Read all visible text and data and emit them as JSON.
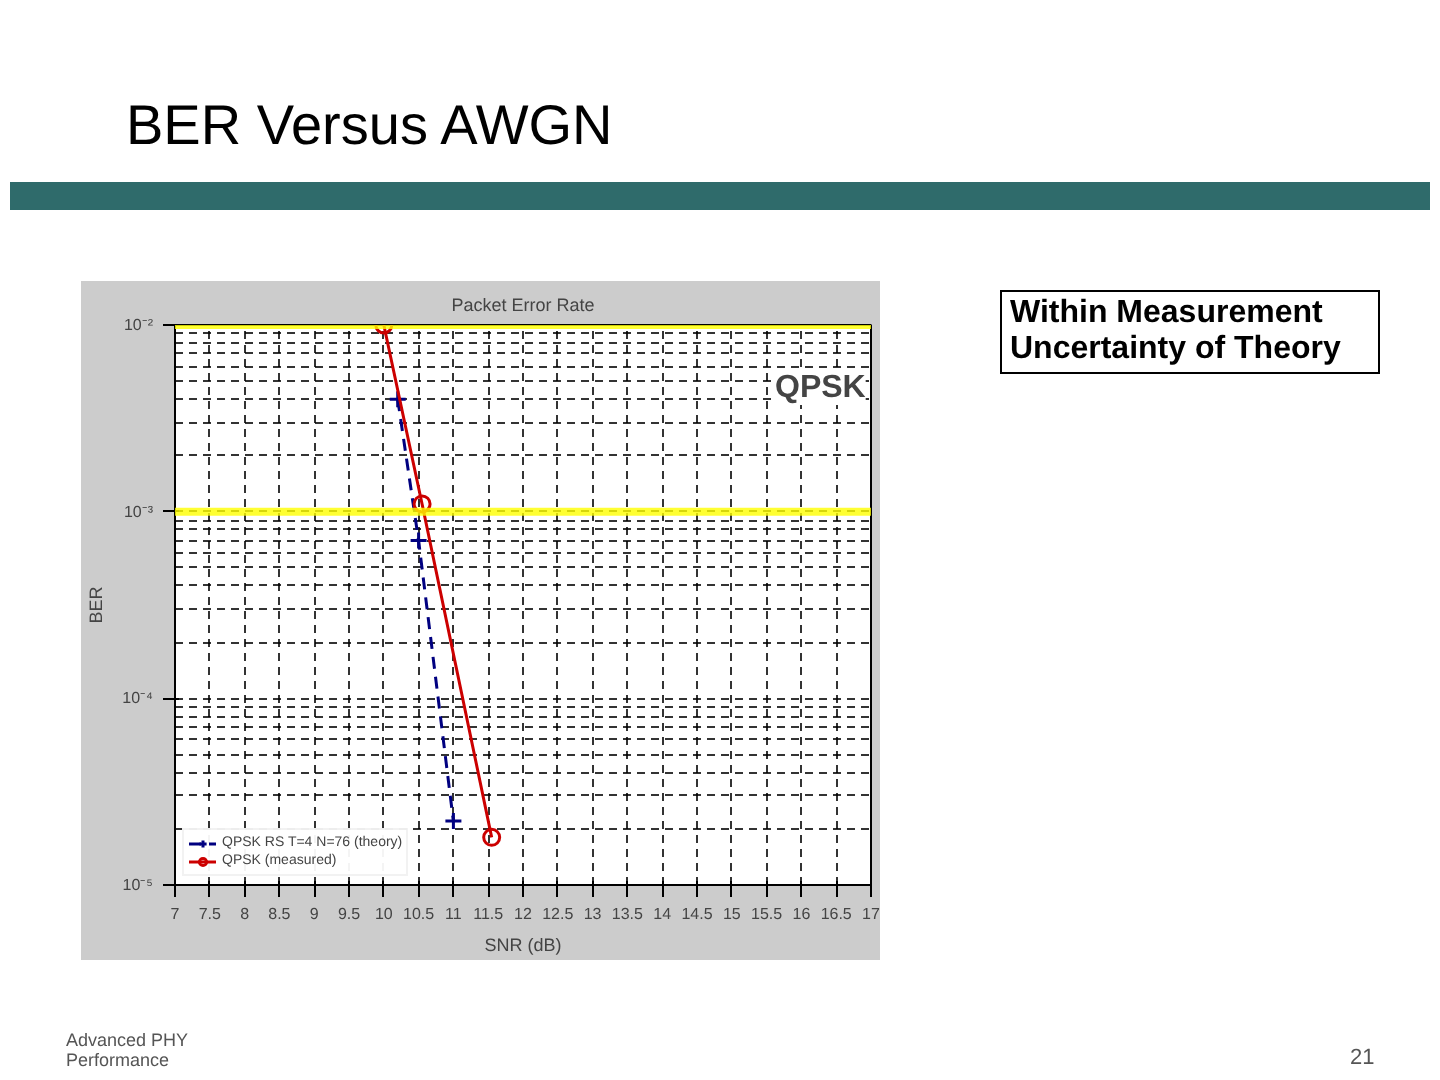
{
  "chart_data": {
    "type": "line",
    "title": "Packet Error Rate",
    "subtitle": "BER Versus AWGN",
    "xlabel": "SNR (dB)",
    "ylabel": "BER",
    "log": "y",
    "xlim": [
      7,
      17
    ],
    "ylim": [
      1e-05,
      0.01
    ],
    "xticks": [
      7,
      7.5,
      8,
      8.5,
      9,
      9.5,
      10,
      10.5,
      11,
      11.5,
      12,
      12.5,
      13,
      13.5,
      14,
      14.5,
      15,
      15.5,
      16,
      16.5,
      17
    ],
    "yticks": [
      {
        "value": 1e-05,
        "label": "10⁻⁵"
      },
      {
        "value": 0.0001,
        "label": "10⁻⁴"
      },
      {
        "value": 0.001,
        "label": "10⁻³"
      },
      {
        "value": 0.01,
        "label": "10⁻²"
      }
    ],
    "grid": true,
    "legend": "bottom left",
    "series": [
      {
        "name": "QPSK RS T=4 N=76 (theory)",
        "color": "#000080",
        "marker": "cross",
        "line_style": "dashed",
        "x": [
          10.2,
          10.5,
          11.0
        ],
        "values": [
          0.004,
          0.0007,
          2.2e-05
        ]
      },
      {
        "name": "QPSK (measured)",
        "color": "#cc0000",
        "marker": "circle",
        "line_style": "solid",
        "x": [
          10.0,
          10.55,
          11.55
        ],
        "values": [
          0.01,
          0.0011,
          1.8e-05
        ]
      }
    ],
    "ref_lines": [
      {
        "axis": "y",
        "value": 0.01,
        "color": "#ffff00"
      },
      {
        "axis": "y",
        "value": 0.001,
        "color": "#ffff00"
      }
    ],
    "annotations": [
      "QPSK",
      "Within Measurement Uncertainty of Theory",
      "Advanced PHY Performance",
      "21"
    ]
  }
}
